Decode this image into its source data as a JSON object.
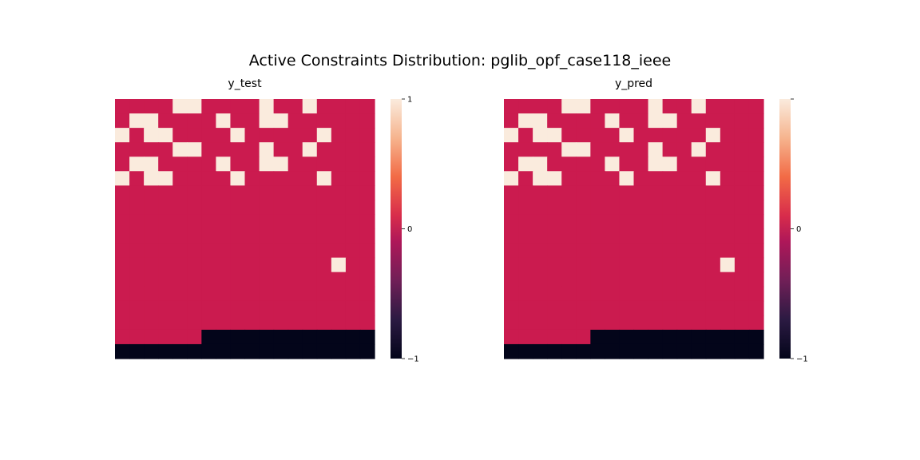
{
  "figure": {
    "title": "Active Constraints Distribution: pglib_opf_case118_ieee"
  },
  "colors": {
    "high": "#FAEBDD",
    "mid": "#CB1B4F",
    "low": "#03051A",
    "background": "#ffffff"
  },
  "chart_data": [
    {
      "type": "heatmap",
      "title": "y_test",
      "vmin": -1,
      "vmax": 1,
      "colorbar_ticks": [
        "1",
        "0",
        "−1"
      ],
      "grid": false,
      "values": [
        [
          0,
          0,
          0,
          0,
          1,
          1,
          0,
          0,
          0,
          0,
          1,
          0,
          0,
          1,
          0,
          0,
          0,
          0
        ],
        [
          0,
          1,
          1,
          0,
          0,
          0,
          0,
          1,
          0,
          0,
          1,
          1,
          0,
          0,
          0,
          0,
          0,
          0
        ],
        [
          1,
          0,
          1,
          1,
          0,
          0,
          0,
          0,
          1,
          0,
          0,
          0,
          0,
          0,
          1,
          0,
          0,
          0
        ],
        [
          0,
          0,
          0,
          0,
          1,
          1,
          0,
          0,
          0,
          0,
          1,
          0,
          0,
          1,
          0,
          0,
          0,
          0
        ],
        [
          0,
          1,
          1,
          0,
          0,
          0,
          0,
          1,
          0,
          0,
          1,
          1,
          0,
          0,
          0,
          0,
          0,
          0
        ],
        [
          1,
          0,
          1,
          1,
          0,
          0,
          0,
          0,
          1,
          0,
          0,
          0,
          0,
          0,
          1,
          0,
          0,
          0
        ],
        [
          0,
          0,
          0,
          0,
          0,
          0,
          0,
          0,
          0,
          0,
          0,
          0,
          0,
          0,
          0,
          0,
          0,
          0
        ],
        [
          0,
          0,
          0,
          0,
          0,
          0,
          0,
          0,
          0,
          0,
          0,
          0,
          0,
          0,
          0,
          0,
          0,
          0
        ],
        [
          0,
          0,
          0,
          0,
          0,
          0,
          0,
          0,
          0,
          0,
          0,
          0,
          0,
          0,
          0,
          0,
          0,
          0
        ],
        [
          0,
          0,
          0,
          0,
          0,
          0,
          0,
          0,
          0,
          0,
          0,
          0,
          0,
          0,
          0,
          0,
          0,
          0
        ],
        [
          0,
          0,
          0,
          0,
          0,
          0,
          0,
          0,
          0,
          0,
          0,
          0,
          0,
          0,
          0,
          0,
          0,
          0
        ],
        [
          0,
          0,
          0,
          0,
          0,
          0,
          0,
          0,
          0,
          0,
          0,
          0,
          0,
          0,
          0,
          1,
          0,
          0
        ],
        [
          0,
          0,
          0,
          0,
          0,
          0,
          0,
          0,
          0,
          0,
          0,
          0,
          0,
          0,
          0,
          0,
          0,
          0
        ],
        [
          0,
          0,
          0,
          0,
          0,
          0,
          0,
          0,
          0,
          0,
          0,
          0,
          0,
          0,
          0,
          0,
          0,
          0
        ],
        [
          0,
          0,
          0,
          0,
          0,
          0,
          0,
          0,
          0,
          0,
          0,
          0,
          0,
          0,
          0,
          0,
          0,
          0
        ],
        [
          0,
          0,
          0,
          0,
          0,
          0,
          0,
          0,
          0,
          0,
          0,
          0,
          0,
          0,
          0,
          0,
          0,
          0
        ],
        [
          0,
          0,
          0,
          0,
          0,
          0,
          -1,
          -1,
          -1,
          -1,
          -1,
          -1,
          -1,
          -1,
          -1,
          -1,
          -1,
          -1
        ],
        [
          -1,
          -1,
          -1,
          -1,
          -1,
          -1,
          -1,
          -1,
          -1,
          -1,
          -1,
          -1,
          -1,
          -1,
          -1,
          -1,
          -1,
          -1
        ]
      ]
    },
    {
      "type": "heatmap",
      "title": "y_pred",
      "vmin": -1,
      "vmax": 1,
      "colorbar_ticks": [
        "",
        "0",
        "−1"
      ],
      "grid": false,
      "values": [
        [
          0,
          0,
          0,
          0,
          1,
          1,
          0,
          0,
          0,
          0,
          1,
          0,
          0,
          1,
          0,
          0,
          0,
          0
        ],
        [
          0,
          1,
          1,
          0,
          0,
          0,
          0,
          1,
          0,
          0,
          1,
          1,
          0,
          0,
          0,
          0,
          0,
          0
        ],
        [
          1,
          0,
          1,
          1,
          0,
          0,
          0,
          0,
          1,
          0,
          0,
          0,
          0,
          0,
          1,
          0,
          0,
          0
        ],
        [
          0,
          0,
          0,
          0,
          1,
          1,
          0,
          0,
          0,
          0,
          1,
          0,
          0,
          1,
          0,
          0,
          0,
          0
        ],
        [
          0,
          1,
          1,
          0,
          0,
          0,
          0,
          1,
          0,
          0,
          1,
          1,
          0,
          0,
          0,
          0,
          0,
          0
        ],
        [
          1,
          0,
          1,
          1,
          0,
          0,
          0,
          0,
          1,
          0,
          0,
          0,
          0,
          0,
          1,
          0,
          0,
          0
        ],
        [
          0,
          0,
          0,
          0,
          0,
          0,
          0,
          0,
          0,
          0,
          0,
          0,
          0,
          0,
          0,
          0,
          0,
          0
        ],
        [
          0,
          0,
          0,
          0,
          0,
          0,
          0,
          0,
          0,
          0,
          0,
          0,
          0,
          0,
          0,
          0,
          0,
          0
        ],
        [
          0,
          0,
          0,
          0,
          0,
          0,
          0,
          0,
          0,
          0,
          0,
          0,
          0,
          0,
          0,
          0,
          0,
          0
        ],
        [
          0,
          0,
          0,
          0,
          0,
          0,
          0,
          0,
          0,
          0,
          0,
          0,
          0,
          0,
          0,
          0,
          0,
          0
        ],
        [
          0,
          0,
          0,
          0,
          0,
          0,
          0,
          0,
          0,
          0,
          0,
          0,
          0,
          0,
          0,
          0,
          0,
          0
        ],
        [
          0,
          0,
          0,
          0,
          0,
          0,
          0,
          0,
          0,
          0,
          0,
          0,
          0,
          0,
          0,
          1,
          0,
          0
        ],
        [
          0,
          0,
          0,
          0,
          0,
          0,
          0,
          0,
          0,
          0,
          0,
          0,
          0,
          0,
          0,
          0,
          0,
          0
        ],
        [
          0,
          0,
          0,
          0,
          0,
          0,
          0,
          0,
          0,
          0,
          0,
          0,
          0,
          0,
          0,
          0,
          0,
          0
        ],
        [
          0,
          0,
          0,
          0,
          0,
          0,
          0,
          0,
          0,
          0,
          0,
          0,
          0,
          0,
          0,
          0,
          0,
          0
        ],
        [
          0,
          0,
          0,
          0,
          0,
          0,
          0,
          0,
          0,
          0,
          0,
          0,
          0,
          0,
          0,
          0,
          0,
          0
        ],
        [
          0,
          0,
          0,
          0,
          0,
          0,
          -1,
          -1,
          -1,
          -1,
          -1,
          -1,
          -1,
          -1,
          -1,
          -1,
          -1,
          -1
        ],
        [
          -1,
          -1,
          -1,
          -1,
          -1,
          -1,
          -1,
          -1,
          -1,
          -1,
          -1,
          -1,
          -1,
          -1,
          -1,
          -1,
          -1,
          -1
        ]
      ]
    }
  ]
}
